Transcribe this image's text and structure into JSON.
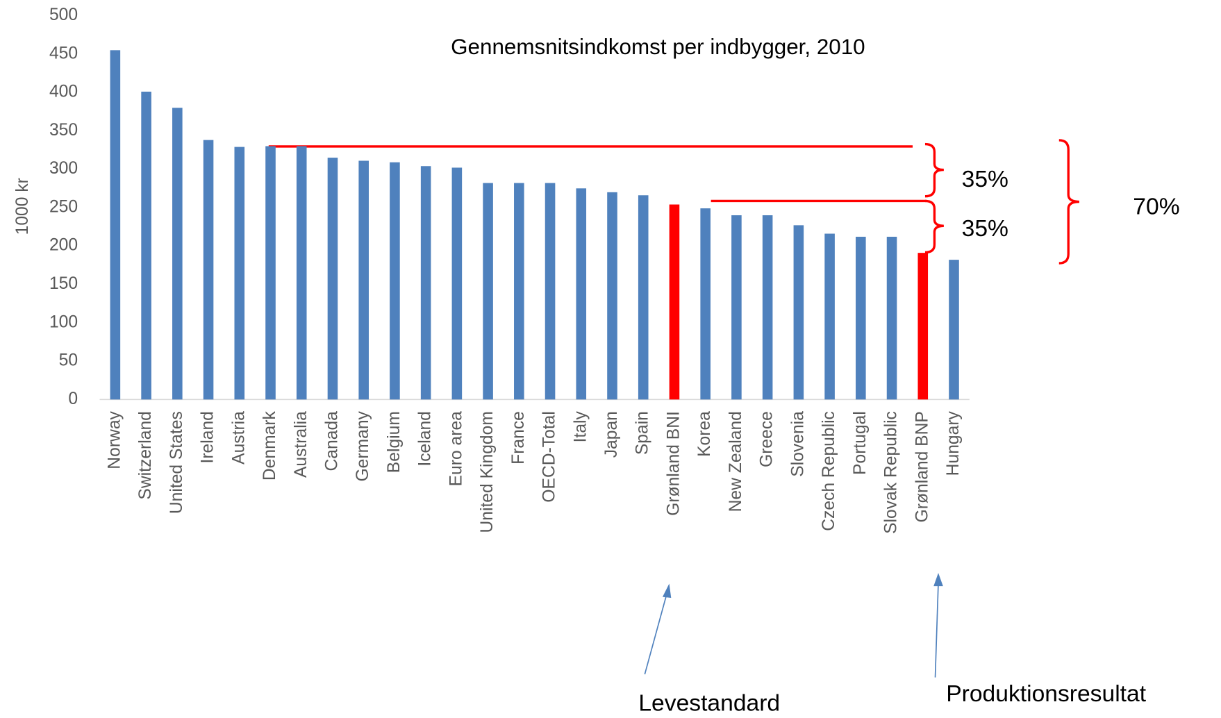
{
  "chart_data": {
    "type": "bar",
    "title": "Gennemsnitsindkomst per indbygger, 2010",
    "ylabel": "1000 kr",
    "categories": [
      "Norway",
      "Switzerland",
      "United States",
      "Ireland",
      "Austria",
      "Denmark",
      "Australia",
      "Canada",
      "Germany",
      "Belgium",
      "Iceland",
      "Euro area",
      "United Kingdom",
      "France",
      "OECD-Total",
      "Italy",
      "Japan",
      "Spain",
      "Grønland BNI",
      "Korea",
      "New Zealand",
      "Greece",
      "Slovenia",
      "Czech Republic",
      "Portugal",
      "Slovak Republic",
      "Grønland BNP",
      "Hungary"
    ],
    "values": [
      455,
      401,
      380,
      338,
      329,
      330,
      330,
      315,
      311,
      309,
      304,
      302,
      282,
      282,
      282,
      275,
      270,
      266,
      254,
      249,
      240,
      240,
      227,
      216,
      212,
      212,
      191,
      182
    ],
    "colors": [
      "#4f81bd",
      "#4f81bd",
      "#4f81bd",
      "#4f81bd",
      "#4f81bd",
      "#4f81bd",
      "#4f81bd",
      "#4f81bd",
      "#4f81bd",
      "#4f81bd",
      "#4f81bd",
      "#4f81bd",
      "#4f81bd",
      "#4f81bd",
      "#4f81bd",
      "#4f81bd",
      "#4f81bd",
      "#4f81bd",
      "#ff0000",
      "#4f81bd",
      "#4f81bd",
      "#4f81bd",
      "#4f81bd",
      "#4f81bd",
      "#4f81bd",
      "#4f81bd",
      "#ff0000",
      "#4f81bd"
    ],
    "ylim": [
      0,
      500
    ],
    "yticks": [
      0,
      50,
      100,
      150,
      200,
      250,
      300,
      350,
      400,
      450,
      500
    ],
    "annotations": [
      "35%",
      "35%",
      "70%",
      "Levestandard",
      "Produktionsresultat"
    ]
  }
}
